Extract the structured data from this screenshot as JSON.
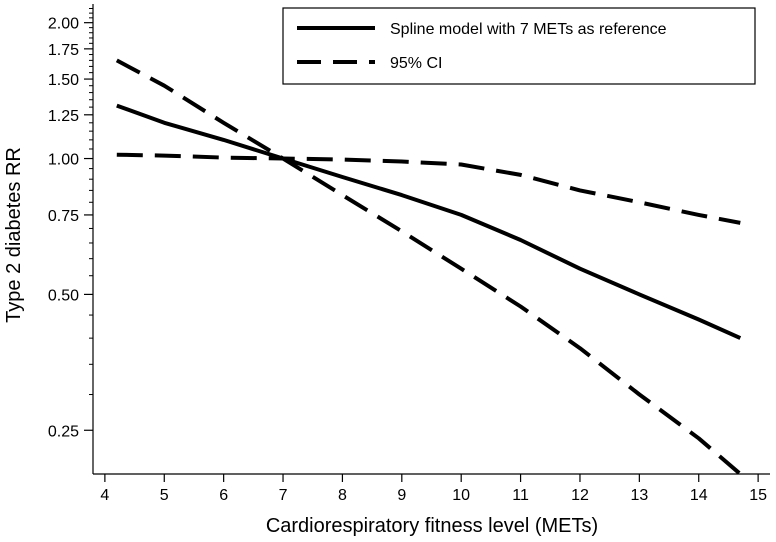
{
  "chart_data": {
    "type": "line",
    "xlabel": "Cardiorespiratory fitness level (METs)",
    "ylabel": "Type 2 diabetes RR",
    "xlim": [
      3.8,
      15.2
    ],
    "ylim": [
      0.2,
      2.2
    ],
    "y_scale": "log",
    "x_ticks": [
      4,
      5,
      6,
      7,
      8,
      9,
      10,
      11,
      12,
      13,
      14,
      15
    ],
    "y_ticks_labeled": [
      {
        "value": 0.25,
        "label": "0.25"
      },
      {
        "value": 0.5,
        "label": "0.50"
      },
      {
        "value": 0.75,
        "label": "0.75"
      },
      {
        "value": 1.0,
        "label": "1.00"
      },
      {
        "value": 1.25,
        "label": "1.25"
      },
      {
        "value": 1.5,
        "label": "1.50"
      },
      {
        "value": 1.75,
        "label": "1.75"
      },
      {
        "value": 2.0,
        "label": "2.00"
      }
    ],
    "y_ticks_minor": [
      0.3,
      0.35,
      0.4,
      0.45,
      0.55,
      0.6,
      0.65,
      0.7,
      0.8,
      0.85,
      0.9,
      0.95,
      1.05,
      1.1,
      1.15,
      1.2,
      1.3,
      1.35,
      1.4,
      1.45,
      1.55,
      1.6,
      1.65,
      1.7,
      1.8,
      1.85,
      1.9,
      1.95,
      2.05,
      2.1,
      2.15
    ],
    "legend_position": "top-right",
    "series": [
      {
        "name": "Spline model with 7 METs as reference",
        "style": "solid",
        "x": [
          4.2,
          5,
          6,
          7,
          8,
          9,
          10,
          11,
          12,
          13,
          14,
          14.7
        ],
        "y": [
          1.31,
          1.2,
          1.1,
          1.0,
          0.91,
          0.83,
          0.75,
          0.66,
          0.57,
          0.5,
          0.44,
          0.4
        ]
      },
      {
        "name": "95% CI",
        "style": "dashed",
        "x": [
          4.2,
          5,
          6,
          7,
          8,
          9,
          10,
          11,
          12,
          13,
          14,
          14.7
        ],
        "y": [
          1.02,
          1.015,
          1.005,
          1.0,
          0.995,
          0.985,
          0.97,
          0.92,
          0.85,
          0.8,
          0.75,
          0.72
        ]
      },
      {
        "name": "",
        "style": "dashed",
        "x": [
          4.2,
          5,
          6,
          7,
          8,
          9,
          10,
          11,
          12,
          13,
          14,
          14.7
        ],
        "y": [
          1.65,
          1.45,
          1.2,
          1.0,
          0.83,
          0.69,
          0.57,
          0.47,
          0.38,
          0.3,
          0.24,
          0.2
        ]
      }
    ]
  }
}
